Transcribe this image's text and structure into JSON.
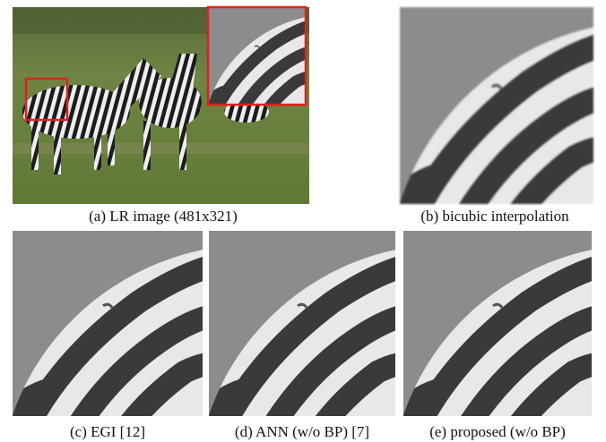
{
  "panels": [
    {
      "caption": "(a) LR image (481x321)"
    },
    {
      "caption": "(b) bicubic interpolation"
    },
    {
      "caption": "(c) EGI [12]"
    },
    {
      "caption": "(d) ANN (w/o BP) [7]"
    },
    {
      "caption": "(e) proposed (w/o BP)"
    }
  ]
}
